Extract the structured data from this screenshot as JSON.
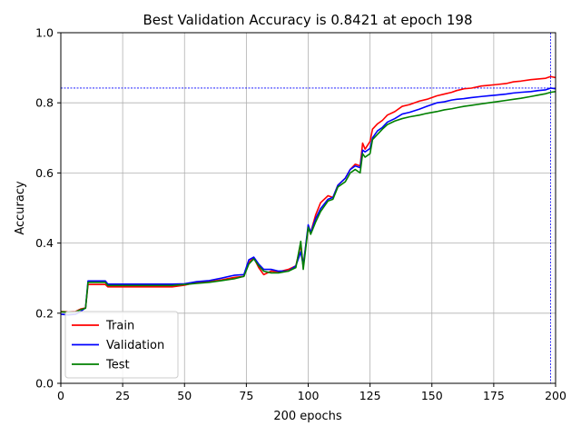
{
  "chart_data": {
    "type": "line",
    "title": "Best Validation Accuracy is 0.8421 at epoch 198",
    "xlabel": "200 epochs",
    "ylabel": "Accuracy",
    "xlim": [
      0,
      200
    ],
    "ylim": [
      0.0,
      1.0
    ],
    "xticks": [
      "0",
      "25",
      "50",
      "75",
      "100",
      "125",
      "150",
      "175",
      "200"
    ],
    "yticks": [
      "0.0",
      "0.2",
      "0.4",
      "0.6",
      "0.8",
      "1.0"
    ],
    "grid": true,
    "legend_position": "lower-left",
    "best_marker": {
      "epoch": 198,
      "accuracy": 0.8421,
      "color": "#0000ff"
    },
    "series": [
      {
        "name": "Train",
        "color": "#ff0000",
        "points": [
          [
            0,
            0.205
          ],
          [
            3,
            0.204
          ],
          [
            6,
            0.205
          ],
          [
            8,
            0.212
          ],
          [
            10,
            0.215
          ],
          [
            11,
            0.282
          ],
          [
            14,
            0.282
          ],
          [
            18,
            0.282
          ],
          [
            19,
            0.275
          ],
          [
            25,
            0.275
          ],
          [
            35,
            0.275
          ],
          [
            45,
            0.275
          ],
          [
            50,
            0.28
          ],
          [
            55,
            0.288
          ],
          [
            60,
            0.29
          ],
          [
            65,
            0.295
          ],
          [
            70,
            0.302
          ],
          [
            74,
            0.305
          ],
          [
            76,
            0.345
          ],
          [
            78,
            0.358
          ],
          [
            80,
            0.33
          ],
          [
            82,
            0.31
          ],
          [
            85,
            0.32
          ],
          [
            88,
            0.318
          ],
          [
            92,
            0.325
          ],
          [
            95,
            0.335
          ],
          [
            97,
            0.395
          ],
          [
            98,
            0.335
          ],
          [
            100,
            0.445
          ],
          [
            101,
            0.43
          ],
          [
            103,
            0.48
          ],
          [
            105,
            0.515
          ],
          [
            108,
            0.535
          ],
          [
            110,
            0.53
          ],
          [
            112,
            0.565
          ],
          [
            115,
            0.585
          ],
          [
            117,
            0.61
          ],
          [
            119,
            0.625
          ],
          [
            121,
            0.62
          ],
          [
            122,
            0.685
          ],
          [
            123,
            0.668
          ],
          [
            125,
            0.69
          ],
          [
            126,
            0.725
          ],
          [
            128,
            0.74
          ],
          [
            130,
            0.75
          ],
          [
            132,
            0.765
          ],
          [
            135,
            0.775
          ],
          [
            138,
            0.79
          ],
          [
            141,
            0.795
          ],
          [
            145,
            0.805
          ],
          [
            148,
            0.81
          ],
          [
            152,
            0.82
          ],
          [
            155,
            0.825
          ],
          [
            158,
            0.83
          ],
          [
            160,
            0.835
          ],
          [
            163,
            0.84
          ],
          [
            166,
            0.842
          ],
          [
            170,
            0.848
          ],
          [
            173,
            0.85
          ],
          [
            176,
            0.852
          ],
          [
            180,
            0.855
          ],
          [
            183,
            0.86
          ],
          [
            186,
            0.862
          ],
          [
            190,
            0.866
          ],
          [
            193,
            0.868
          ],
          [
            196,
            0.87
          ],
          [
            198,
            0.875
          ],
          [
            200,
            0.872
          ]
        ]
      },
      {
        "name": "Validation",
        "color": "#0000ff",
        "points": [
          [
            0,
            0.197
          ],
          [
            3,
            0.195
          ],
          [
            6,
            0.197
          ],
          [
            8,
            0.205
          ],
          [
            10,
            0.215
          ],
          [
            11,
            0.292
          ],
          [
            14,
            0.292
          ],
          [
            18,
            0.292
          ],
          [
            19,
            0.283
          ],
          [
            25,
            0.283
          ],
          [
            35,
            0.283
          ],
          [
            45,
            0.283
          ],
          [
            50,
            0.284
          ],
          [
            55,
            0.29
          ],
          [
            60,
            0.293
          ],
          [
            65,
            0.3
          ],
          [
            70,
            0.308
          ],
          [
            74,
            0.31
          ],
          [
            76,
            0.352
          ],
          [
            78,
            0.36
          ],
          [
            80,
            0.34
          ],
          [
            82,
            0.325
          ],
          [
            85,
            0.325
          ],
          [
            88,
            0.32
          ],
          [
            92,
            0.32
          ],
          [
            95,
            0.335
          ],
          [
            97,
            0.375
          ],
          [
            98,
            0.335
          ],
          [
            100,
            0.452
          ],
          [
            101,
            0.43
          ],
          [
            103,
            0.47
          ],
          [
            105,
            0.498
          ],
          [
            108,
            0.525
          ],
          [
            110,
            0.53
          ],
          [
            112,
            0.565
          ],
          [
            115,
            0.585
          ],
          [
            117,
            0.61
          ],
          [
            119,
            0.62
          ],
          [
            121,
            0.615
          ],
          [
            122,
            0.665
          ],
          [
            123,
            0.66
          ],
          [
            125,
            0.67
          ],
          [
            126,
            0.7
          ],
          [
            128,
            0.72
          ],
          [
            130,
            0.73
          ],
          [
            132,
            0.745
          ],
          [
            135,
            0.755
          ],
          [
            138,
            0.768
          ],
          [
            141,
            0.773
          ],
          [
            145,
            0.782
          ],
          [
            148,
            0.79
          ],
          [
            152,
            0.8
          ],
          [
            155,
            0.803
          ],
          [
            158,
            0.808
          ],
          [
            160,
            0.81
          ],
          [
            163,
            0.812
          ],
          [
            166,
            0.815
          ],
          [
            170,
            0.818
          ],
          [
            173,
            0.82
          ],
          [
            176,
            0.822
          ],
          [
            180,
            0.825
          ],
          [
            183,
            0.828
          ],
          [
            186,
            0.83
          ],
          [
            190,
            0.832
          ],
          [
            193,
            0.835
          ],
          [
            196,
            0.837
          ],
          [
            198,
            0.8421
          ],
          [
            200,
            0.84
          ]
        ]
      },
      {
        "name": "Test",
        "color": "#008000",
        "points": [
          [
            0,
            0.204
          ],
          [
            3,
            0.203
          ],
          [
            6,
            0.204
          ],
          [
            8,
            0.21
          ],
          [
            10,
            0.214
          ],
          [
            11,
            0.288
          ],
          [
            14,
            0.288
          ],
          [
            18,
            0.288
          ],
          [
            19,
            0.279
          ],
          [
            25,
            0.279
          ],
          [
            35,
            0.279
          ],
          [
            45,
            0.279
          ],
          [
            50,
            0.282
          ],
          [
            55,
            0.285
          ],
          [
            60,
            0.288
          ],
          [
            65,
            0.293
          ],
          [
            70,
            0.298
          ],
          [
            74,
            0.305
          ],
          [
            76,
            0.34
          ],
          [
            78,
            0.355
          ],
          [
            80,
            0.335
          ],
          [
            82,
            0.32
          ],
          [
            85,
            0.315
          ],
          [
            88,
            0.315
          ],
          [
            92,
            0.32
          ],
          [
            95,
            0.33
          ],
          [
            97,
            0.405
          ],
          [
            98,
            0.325
          ],
          [
            100,
            0.445
          ],
          [
            101,
            0.425
          ],
          [
            103,
            0.46
          ],
          [
            105,
            0.49
          ],
          [
            108,
            0.52
          ],
          [
            110,
            0.525
          ],
          [
            112,
            0.56
          ],
          [
            115,
            0.575
          ],
          [
            117,
            0.6
          ],
          [
            119,
            0.61
          ],
          [
            121,
            0.6
          ],
          [
            122,
            0.655
          ],
          [
            123,
            0.645
          ],
          [
            125,
            0.655
          ],
          [
            126,
            0.695
          ],
          [
            128,
            0.71
          ],
          [
            130,
            0.725
          ],
          [
            132,
            0.738
          ],
          [
            135,
            0.748
          ],
          [
            138,
            0.755
          ],
          [
            141,
            0.76
          ],
          [
            145,
            0.765
          ],
          [
            148,
            0.77
          ],
          [
            152,
            0.775
          ],
          [
            155,
            0.78
          ],
          [
            158,
            0.783
          ],
          [
            160,
            0.786
          ],
          [
            163,
            0.79
          ],
          [
            166,
            0.793
          ],
          [
            170,
            0.797
          ],
          [
            173,
            0.8
          ],
          [
            176,
            0.803
          ],
          [
            180,
            0.807
          ],
          [
            183,
            0.81
          ],
          [
            186,
            0.813
          ],
          [
            190,
            0.818
          ],
          [
            193,
            0.822
          ],
          [
            196,
            0.826
          ],
          [
            198,
            0.83
          ],
          [
            200,
            0.832
          ]
        ]
      }
    ]
  }
}
